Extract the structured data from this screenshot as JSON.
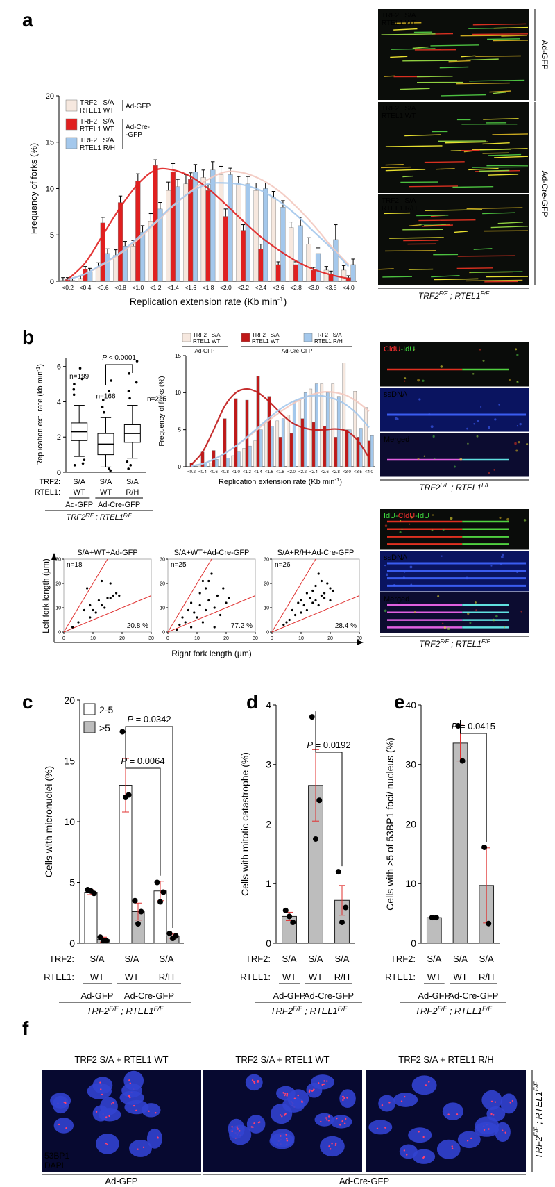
{
  "panel_letters": [
    "a",
    "b",
    "c",
    "d",
    "e",
    "f"
  ],
  "genotype": {
    "gene1": "TRF2",
    "sup1": "F/F",
    "sep": " ; ",
    "gene2": "RTEL1",
    "sup2": "F/F"
  },
  "genotype_tight": {
    "gene1": "TRF2",
    "sup1": "F/F",
    "sep": " ; ",
    "gene2": "RTEL1",
    "sup2": "F/F"
  },
  "conditions": {
    "rows": [
      "TRF2:",
      "RTEL1:"
    ],
    "trf2": [
      "S/A",
      "S/A",
      "S/A"
    ],
    "rtel1": [
      "WT",
      "WT",
      "R/H"
    ],
    "groups": [
      "Ad-GFP",
      "Ad-Cre-GFP"
    ]
  },
  "images_a": {
    "panels": [
      [
        "TRF2   S/A",
        "RTEL1 WT"
      ],
      [
        "TRF2   S/A",
        "RTEL1 WT"
      ],
      [
        "TRF2   S/A",
        "RTEL1 R/H"
      ]
    ],
    "side": [
      "Ad-GFP",
      "Ad-Cre-GFP"
    ]
  },
  "images_b": [
    {
      "title_parts": [
        "CldU",
        "-IdU"
      ],
      "labels": [
        "ssDNA",
        "Merged"
      ]
    },
    {
      "title_parts": [
        "IdU-",
        "CldU",
        "-IdU"
      ],
      "labels": [
        "ssDNA",
        "Merged"
      ]
    }
  ],
  "scatter_axes": {
    "xlabel": "Right fork length (μm)",
    "ylabel": "Left fork length (μm)"
  },
  "images_f": {
    "titles": [
      "TRF2 S/A + RTEL1 WT",
      "TRF2 S/A + RTEL1 WT",
      "TRF2 S/A + RTEL1 R/H"
    ],
    "stains": [
      "53BP1",
      "DAPI"
    ],
    "groups": [
      "Ad-GFP",
      "Ad-Cre-GFP"
    ]
  },
  "chart_data": [
    {
      "type": "bar",
      "categories": [
        "<0.2",
        "<0.4",
        "<0.6",
        "<0.8",
        "<1.0",
        "<1.2",
        "<1.4",
        "<1.6",
        "<1.8",
        "<2.0",
        "<2.2",
        "<2.4",
        "<2.6",
        "<2.8",
        "<3.0",
        "<3.5",
        "<4.0"
      ],
      "series": [
        {
          "name": [
            "TRF2   S/A",
            "RTEL1 WT"
          ],
          "color": "#f6e8df",
          "values": [
            0.1,
            0.3,
            1.5,
            2.8,
            3.8,
            6.5,
            9.8,
            10.5,
            11.2,
            11.5,
            10.5,
            9.8,
            9.0,
            5.8,
            4.0,
            1.2,
            1.2
          ],
          "errors": [
            0.3,
            0.3,
            0.5,
            0.6,
            0.6,
            0.8,
            0.9,
            1.0,
            0.8,
            0.9,
            0.8,
            0.8,
            0.7,
            0.6,
            0.7,
            0.4,
            0.5
          ],
          "fit": [
            0.2,
            0.8,
            1.8,
            3.0,
            4.5,
            6.3,
            8.1,
            9.7,
            11.0,
            11.8,
            11.7,
            11.0,
            9.8,
            8.1,
            6.1,
            3.8,
            1.8
          ]
        },
        {
          "name": [
            "TRF2   S/A",
            "RTEL1 WT"
          ],
          "color": "#e02020",
          "values": [
            0.2,
            1.3,
            6.3,
            8.5,
            10.8,
            12.5,
            11.8,
            11.0,
            9.8,
            7.0,
            5.5,
            3.5,
            1.8,
            1.8,
            1.2,
            0.8,
            0.4
          ],
          "errors": [
            0.2,
            0.3,
            0.6,
            0.7,
            0.8,
            0.6,
            0.9,
            0.7,
            0.6,
            0.8,
            0.6,
            0.5,
            0.3,
            0.3,
            0.3,
            0.3,
            0.2
          ],
          "fit": [
            0.2,
            2.0,
            5.0,
            8.0,
            10.5,
            12.0,
            12.0,
            11.3,
            10.0,
            8.3,
            6.5,
            4.8,
            3.4,
            2.2,
            1.3,
            0.7,
            0.3
          ]
        },
        {
          "name": [
            "TRF2   S/A",
            "RTEL1 R/H"
          ],
          "color": "#a4c8ec",
          "values": [
            0.1,
            1.0,
            3.0,
            3.8,
            5.3,
            7.8,
            10.2,
            11.8,
            12.0,
            11.5,
            10.5,
            10.0,
            8.0,
            6.0,
            3.0,
            4.5,
            1.8
          ],
          "errors": [
            0.2,
            0.4,
            0.5,
            0.5,
            0.7,
            0.7,
            0.8,
            0.8,
            0.9,
            0.7,
            0.8,
            0.6,
            0.7,
            0.9,
            0.6,
            1.6,
            0.6
          ],
          "fit": [
            0.2,
            0.8,
            1.9,
            3.1,
            4.7,
            6.4,
            8.2,
            9.6,
            10.5,
            10.6,
            10.4,
            9.8,
            8.7,
            7.2,
            5.4,
            3.6,
            1.6
          ]
        }
      ],
      "legend_groups": [
        [
          "Ad-GFP"
        ],
        [
          "Ad-Cre-",
          "-GFP"
        ]
      ],
      "error_color": "#000000",
      "ylim": [
        0,
        20
      ],
      "yticks": [
        0,
        5,
        10,
        15,
        20
      ],
      "ylabel": "Frequency of forks (%)",
      "xlabel": {
        "text": "Replication extension rate (Kb min",
        "sup": "-1",
        "end": ")"
      }
    },
    {
      "type": "box",
      "boxes": [
        {
          "whislo": 0.9,
          "q1": 1.8,
          "med": 2.3,
          "q3": 2.8,
          "whishi": 3.8
        },
        {
          "whislo": 0.3,
          "q1": 1.0,
          "med": 1.6,
          "q3": 2.2,
          "whishi": 3.1
        },
        {
          "whislo": 0.8,
          "q1": 1.7,
          "med": 2.2,
          "q3": 2.7,
          "whishi": 3.8
        }
      ],
      "fliers": [
        [
          0.4,
          0.5,
          0.7,
          4.4,
          4.7,
          5.0,
          5.3,
          5.9
        ],
        [
          0.1,
          0.2,
          3.4,
          3.7,
          4.1,
          4.6,
          5.2
        ],
        [
          0.2,
          0.4,
          0.6,
          4.2,
          4.6,
          5.1,
          5.6,
          6.3
        ]
      ],
      "n_labels": [
        "n=199",
        "n=166",
        "n=235"
      ],
      "annotation": "P < 0.0001",
      "ylim": [
        0,
        6.5
      ],
      "yticks": [
        0,
        2,
        4,
        6
      ],
      "ylabel": {
        "text": "Replication ext. rate (kb min",
        "sup": "-1",
        "end": ")"
      }
    },
    {
      "type": "bar",
      "categories": [
        "<0.2",
        "<0.4",
        "<0.6",
        "<0.8",
        "<1.0",
        "<1.2",
        "<1.4",
        "<1.6",
        "<1.8",
        "<2.0",
        "<2.2",
        "<2.4",
        "<2.6",
        "<2.8",
        "<3.0",
        "<3.5",
        "<4.0"
      ],
      "series": [
        {
          "name": [
            "TRF2   S/A",
            "RTEL1 WT"
          ],
          "color": "#f6e8df",
          "values": [
            0,
            0.2,
            0.5,
            1.5,
            1.5,
            2.5,
            3.5,
            6.0,
            6.2,
            7.0,
            9.0,
            10.5,
            11.2,
            11.2,
            14.0,
            10.2,
            8.0
          ],
          "fit": [
            0.1,
            0.4,
            1.0,
            1.8,
            2.8,
            3.9,
            5.1,
            6.3,
            7.4,
            8.4,
            9.2,
            9.8,
            10.1,
            10.0,
            9.6,
            8.7,
            7.5
          ]
        },
        {
          "name": [
            "TRF2   S/A",
            "RTEL1 WT"
          ],
          "color": "#c01818",
          "values": [
            0.5,
            2.0,
            2.2,
            6.5,
            9.2,
            9.0,
            12.2,
            9.5,
            4.0,
            4.5,
            6.5,
            6.0,
            5.5,
            4.0,
            5.0,
            4.0,
            3.5
          ],
          "fit": [
            0.3,
            2.0,
            5.0,
            8.2,
            10.0,
            10.5,
            10.0,
            8.8,
            7.3,
            6.0,
            5.3,
            5.0,
            5.0,
            5.1,
            4.8,
            3.5,
            1.2
          ]
        },
        {
          "name": [
            "TRF2   S/A",
            "RTEL1 R/H"
          ],
          "color": "#a4c8ec",
          "values": [
            0,
            0.5,
            1.0,
            1.2,
            2.0,
            2.8,
            5.0,
            5.5,
            6.5,
            8.8,
            10.0,
            11.2,
            10.0,
            9.5,
            5.0,
            5.2,
            4.2
          ],
          "fit": [
            0.1,
            0.4,
            1.0,
            1.8,
            2.8,
            4.0,
            5.3,
            6.6,
            7.8,
            8.7,
            9.3,
            9.6,
            9.5,
            9.1,
            8.3,
            7.0,
            5.3
          ]
        }
      ],
      "legend_groups": [
        [
          "Ad-GFP"
        ],
        [
          "Ad-Cre-GFP"
        ]
      ],
      "ylim": [
        0,
        15
      ],
      "yticks": [
        0,
        5,
        10,
        15
      ],
      "ylabel": "Frequency of forks (%)",
      "xlabel": {
        "text": "Replication extension rate (Kb min",
        "sup": "-1",
        "end": ")"
      }
    },
    {
      "type": "scatter",
      "title": "S/A+WT+Ad-GFP",
      "n_label": "n=18",
      "pct_label": "20.8 %",
      "x": [
        3,
        5,
        7,
        8,
        9,
        10,
        11,
        12,
        13,
        14,
        15,
        16,
        16,
        17,
        18,
        19,
        9,
        13
      ],
      "y": [
        2,
        4,
        9,
        18,
        6,
        9,
        8,
        13,
        11,
        10,
        14,
        20,
        14,
        15,
        16,
        15,
        11,
        21
      ],
      "xlim": [
        0,
        30
      ],
      "ylim": [
        0,
        30
      ],
      "xticks": [
        0,
        10,
        20,
        30
      ],
      "yticks": [
        0,
        10,
        20,
        30
      ],
      "ref_slopes": [
        2,
        0.5
      ],
      "color": "#000000",
      "line_color": "#e0302f"
    },
    {
      "type": "scatter",
      "title": "S/A+WT+Ad-Cre-GFP",
      "n_label": "n=25",
      "pct_label": "77.2 %",
      "x": [
        3,
        4,
        5,
        6,
        7,
        8,
        8,
        9,
        10,
        11,
        11,
        12,
        13,
        13,
        14,
        14,
        15,
        16,
        17,
        18,
        19,
        20,
        21,
        12,
        16
      ],
      "y": [
        1,
        3,
        6,
        4,
        9,
        2,
        12,
        8,
        6,
        16,
        11,
        4,
        18,
        9,
        21,
        13,
        24,
        10,
        15,
        7,
        18,
        12,
        14,
        21,
        2
      ],
      "xlim": [
        0,
        30
      ],
      "ylim": [
        0,
        30
      ],
      "xticks": [
        0,
        10,
        20,
        30
      ],
      "yticks": [
        0,
        10,
        20,
        30
      ],
      "ref_slopes": [
        2,
        0.5
      ],
      "color": "#000000",
      "line_color": "#e0302f"
    },
    {
      "type": "scatter",
      "title": "S/A+R/H+Ad-Cre-GFP",
      "n_label": "n=26",
      "pct_label": "28.4 %",
      "x": [
        4,
        5,
        6,
        7,
        8,
        9,
        10,
        10,
        11,
        12,
        12,
        13,
        14,
        14,
        15,
        15,
        16,
        17,
        17,
        18,
        18,
        19,
        20,
        20,
        21,
        16
      ],
      "y": [
        3,
        4,
        5,
        9,
        7,
        12,
        8,
        13,
        11,
        9,
        16,
        14,
        12,
        17,
        13,
        19,
        11,
        15,
        21,
        14,
        16,
        20,
        13,
        18,
        17,
        24
      ],
      "xlim": [
        0,
        30
      ],
      "ylim": [
        0,
        30
      ],
      "xticks": [
        0,
        10,
        20,
        30
      ],
      "yticks": [
        0,
        10,
        20,
        30
      ],
      "ref_slopes": [
        2,
        0.5
      ],
      "color": "#000000",
      "line_color": "#e0302f"
    },
    {
      "type": "bar",
      "series": [
        {
          "name": "2-5",
          "color": "#ffffff",
          "values": [
            4.2,
            13.0,
            4.3
          ],
          "errors": [
            0.2,
            2.2,
            0.8
          ],
          "points": [
            [
              4.4,
              4.1,
              4.3
            ],
            [
              17.4,
              12.2,
              12.0
            ],
            [
              5.0,
              4.2,
              3.4
            ]
          ]
        },
        {
          "name": ">5",
          "color": "#bdbdbd",
          "values": [
            0.3,
            2.6,
            0.6
          ],
          "errors": [
            0.2,
            0.7,
            0.2
          ],
          "points": [
            [
              0.5,
              0.2,
              0.2
            ],
            [
              3.5,
              2.6,
              1.6
            ],
            [
              0.8,
              0.6,
              0.4
            ]
          ]
        }
      ],
      "annotations": [
        "P = 0.0064",
        "P = 0.0342"
      ],
      "error_color": "#e0302f",
      "ylim": [
        0,
        20
      ],
      "yticks": [
        0,
        5,
        10,
        15,
        20
      ],
      "ylabel": "Cells with micronuclei (%)"
    },
    {
      "type": "bar",
      "series": [
        {
          "color": "#bdbdbd",
          "values": [
            0.45,
            2.65,
            0.72
          ],
          "errors": [
            0.07,
            0.6,
            0.25
          ],
          "points": [
            [
              0.55,
              0.35,
              0.45
            ],
            [
              3.8,
              2.4,
              1.75
            ],
            [
              1.2,
              0.6,
              0.35
            ]
          ]
        }
      ],
      "annotations": [
        "P = 0.0192"
      ],
      "error_color": "#e0302f",
      "ylim": [
        0,
        4
      ],
      "yticks": [
        0,
        1,
        2,
        3,
        4
      ],
      "ylabel": "Cells with mitotic catastrophe (%)"
    },
    {
      "type": "bar",
      "series": [
        {
          "color": "#bdbdbd",
          "values": [
            4.3,
            33.6,
            9.7
          ],
          "errors": [
            0.2,
            3.0,
            6.3
          ],
          "points": [
            [
              4.3,
              4.3
            ],
            [
              36.5,
              30.6
            ],
            [
              16.1,
              3.3
            ]
          ]
        }
      ],
      "annotations": [
        "P = 0.0415"
      ],
      "error_color": "#e0302f",
      "ylim": [
        0,
        40
      ],
      "yticks": [
        0,
        10,
        20,
        30,
        40
      ],
      "ylabel": "Cells with >5 of 53BP1 foci/ nucleus (%)"
    }
  ]
}
